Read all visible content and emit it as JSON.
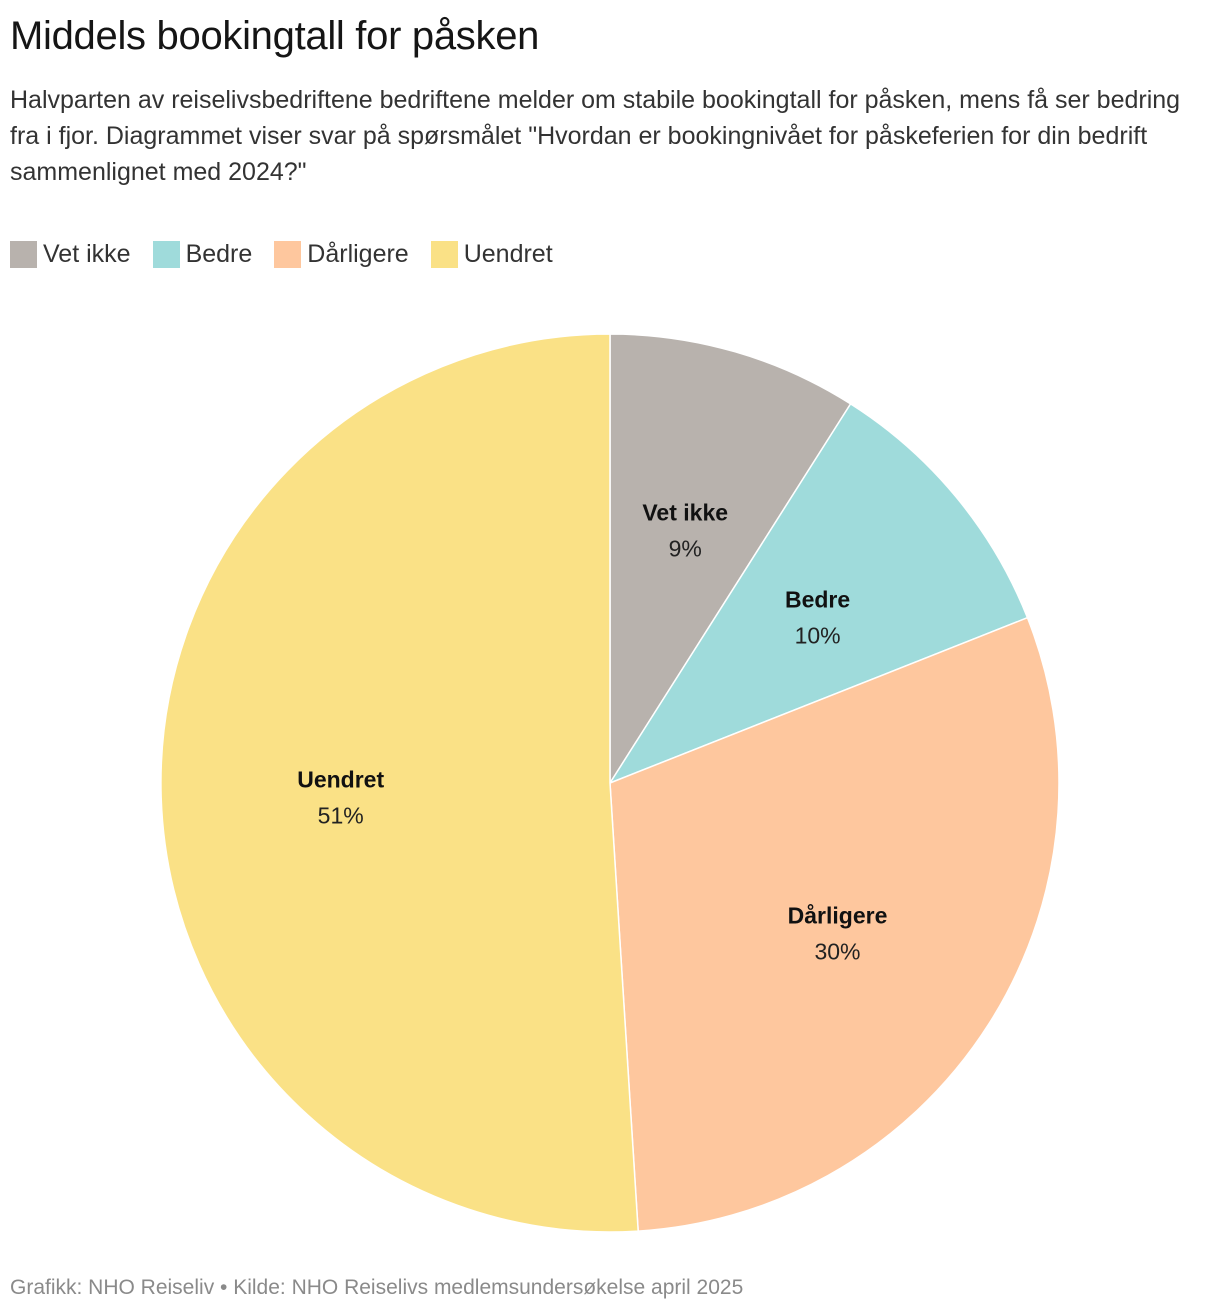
{
  "header": {
    "title": "Middels bookingtall for påsken",
    "subtitle": "Halvparten av reiselivsbedriftene bedriftene melder om stabile bookingtall for påsken, mens få ser bedring fra i fjor. Diagrammet viser svar på spørsmålet \"Hvordan er bookingnivået for påskeferien for din bedrift sammenlignet med 2024?\""
  },
  "legend": [
    {
      "label": "Vet ikke",
      "color": "#b8b2ad"
    },
    {
      "label": "Bedre",
      "color": "#9fdbdb"
    },
    {
      "label": "Dårligere",
      "color": "#fec79e"
    },
    {
      "label": "Uendret",
      "color": "#fae186"
    }
  ],
  "chart_data": {
    "type": "pie",
    "title": "Middels bookingtall for påsken",
    "start_angle": "12 o'clock",
    "direction": "clockwise",
    "slices": [
      {
        "name": "Vet ikke",
        "value": 9,
        "label": "9%",
        "color": "#b8b2ad"
      },
      {
        "name": "Bedre",
        "value": 10,
        "label": "10%",
        "color": "#9fdbdb"
      },
      {
        "name": "Dårligere",
        "value": 30,
        "label": "30%",
        "color": "#fec79e"
      },
      {
        "name": "Uendret",
        "value": 51,
        "label": "51%",
        "color": "#fae186"
      }
    ]
  },
  "footer": {
    "text": "Grafikk: NHO Reiseliv • Kilde: NHO Reiselivs medlemsundersøkelse april 2025"
  }
}
